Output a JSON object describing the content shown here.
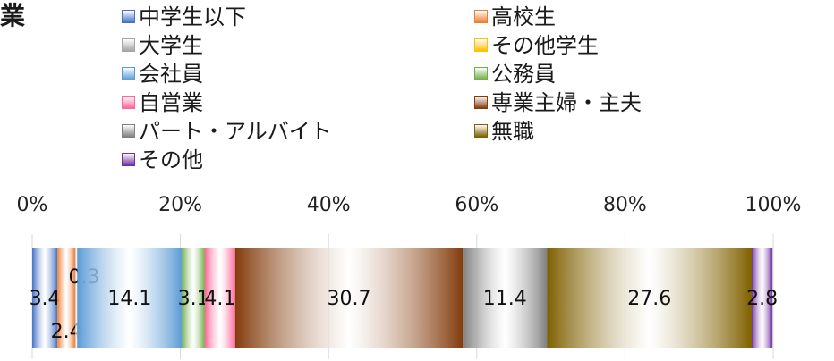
{
  "title": "業",
  "colors": {
    "中学生以下": "#4472c4",
    "高校生": "#ed7d31",
    "大学生": "#a5a5a5",
    "その他学生": "#ffc000",
    "会社員": "#5b9bd5",
    "公務員": "#70ad47",
    "自営業": "#ff6699",
    "専業主婦・主夫": "#843c0c",
    "パート・アルバイト": "#7f7f7f",
    "無職": "#7f6000",
    "その他": "#7030a0"
  },
  "chart_data": {
    "type": "bar",
    "orientation": "horizontal-stacked-100",
    "title": "業",
    "xlim": [
      0,
      100
    ],
    "ticks": [
      "0%",
      "20%",
      "40%",
      "60%",
      "80%",
      "100%"
    ],
    "legend_position": "top",
    "legend": [
      "中学生以下",
      "高校生",
      "大学生",
      "その他学生",
      "会社員",
      "公務員",
      "自営業",
      "専業主婦・主夫",
      "パート・アルバイト",
      "無職",
      "その他"
    ],
    "series": [
      {
        "name": "中学生以下",
        "value": 3.4,
        "label": "3.4"
      },
      {
        "name": "高校生",
        "value": 2.4,
        "label": "2.4"
      },
      {
        "name": "大学生",
        "value": 0.3,
        "label": "0.3"
      },
      {
        "name": "会社員",
        "value": 14.1,
        "label": "14.1"
      },
      {
        "name": "公務員",
        "value": 3.1,
        "label": "3.1"
      },
      {
        "name": "自営業",
        "value": 4.1,
        "label": "4.1"
      },
      {
        "name": "専業主婦・主夫",
        "value": 30.7,
        "label": "30.7"
      },
      {
        "name": "パート・アルバイト",
        "value": 11.4,
        "label": "11.4"
      },
      {
        "name": "無職",
        "value": 27.6,
        "label": "27.6"
      },
      {
        "name": "その他",
        "value": 2.8,
        "label": "2.8"
      }
    ]
  }
}
